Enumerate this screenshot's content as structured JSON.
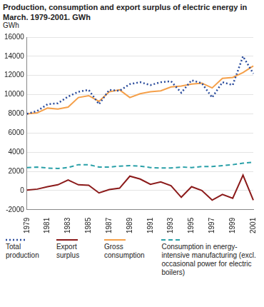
{
  "chart_data": {
    "type": "line",
    "title": "Production, consumption and export surplus of electric energy in March. 1979-2001. GWh",
    "ylabel": "GWh",
    "categories": [
      "1979",
      null,
      "1981",
      null,
      "1983",
      null,
      "1985",
      null,
      "1987",
      null,
      "1989",
      null,
      "1991",
      null,
      "1993",
      null,
      "1995",
      null,
      "1997",
      null,
      "1999",
      null,
      "2001"
    ],
    "series": [
      {
        "name": "Total production",
        "color": "#2b4c9c",
        "line_style": "dotted",
        "marker": "none",
        "values": [
          8000,
          8300,
          9000,
          9100,
          9800,
          10300,
          10500,
          9000,
          10500,
          10400,
          11100,
          11300,
          11000,
          11300,
          11400,
          10200,
          11500,
          11200,
          9700,
          11300,
          11000,
          14000,
          12200
        ]
      },
      {
        "name": "Export surplus",
        "color": "#8b1a1a",
        "line_style": "solid",
        "marker": "none",
        "values": [
          50,
          150,
          400,
          600,
          1100,
          600,
          550,
          -250,
          100,
          250,
          1500,
          1200,
          650,
          900,
          500,
          -700,
          400,
          0,
          -1000,
          -400,
          -800,
          1600,
          -1000
        ]
      },
      {
        "name": "Gross consumption",
        "color": "#f5a04a",
        "line_style": "solid",
        "marker": "none",
        "values": [
          8000,
          8100,
          8600,
          8500,
          8700,
          9700,
          9900,
          9300,
          10300,
          10500,
          9700,
          10100,
          10300,
          10400,
          10800,
          10900,
          11100,
          11200,
          10700,
          11700,
          11800,
          12300,
          13000
        ]
      },
      {
        "name": "Consumption in energy-intensive manufacturing (excl. occasional power for electric boilers)",
        "color": "#2aa0a8",
        "line_style": "dashed",
        "marker": "none",
        "values": [
          2400,
          2450,
          2350,
          2300,
          2400,
          2700,
          2700,
          2450,
          2450,
          2550,
          2600,
          2550,
          2400,
          2350,
          2350,
          2450,
          2400,
          2500,
          2500,
          2600,
          2700,
          2850,
          2950
        ]
      }
    ],
    "ylim": [
      -2000,
      16000
    ],
    "yticks": [
      -2000,
      0,
      2000,
      4000,
      6000,
      8000,
      10000,
      12000,
      14000,
      16000
    ],
    "grid": true,
    "legend": "bottom"
  }
}
